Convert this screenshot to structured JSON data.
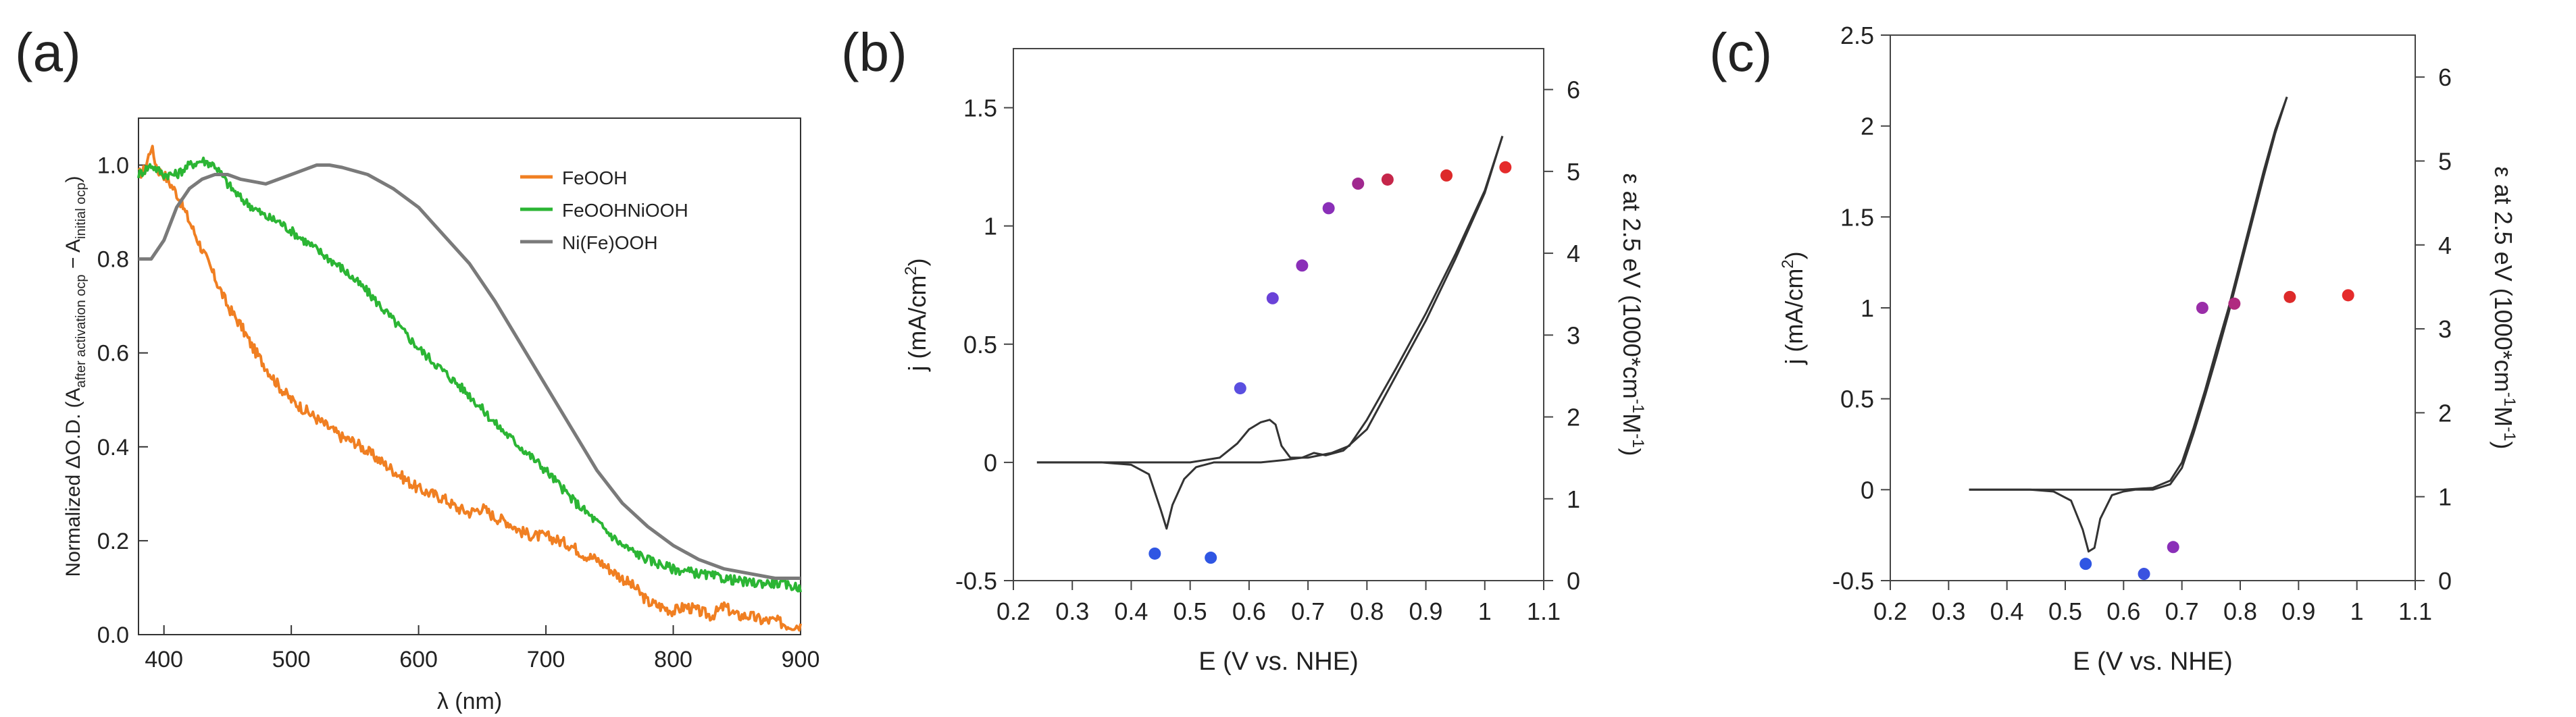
{
  "chart_data": [
    {
      "panel_label": "(a)",
      "type": "line",
      "xlabel": "λ (nm)",
      "ylabel": "Normalized ΔO.D. (A",
      "ylabel_sub1": "after activation ocp",
      "ylabel_mid": " − A",
      "ylabel_sub2": "initial ocp",
      "ylabel_end": ")",
      "xlim": [
        380,
        900
      ],
      "ylim": [
        0.0,
        1.1
      ],
      "xticks": [
        400,
        500,
        600,
        700,
        800,
        900
      ],
      "yticks": [
        0.0,
        0.2,
        0.4,
        0.6,
        0.8,
        1.0
      ],
      "legend_position": "top-right",
      "series": [
        {
          "name": "FeOOH",
          "color": "#f07f22",
          "noise": 0.012,
          "x": [
            380,
            385,
            390,
            395,
            400,
            410,
            420,
            430,
            440,
            450,
            460,
            470,
            480,
            490,
            500,
            510,
            520,
            530,
            540,
            550,
            560,
            570,
            580,
            590,
            600,
            610,
            620,
            630,
            640,
            650,
            660,
            670,
            680,
            690,
            700,
            710,
            720,
            730,
            740,
            750,
            760,
            770,
            780,
            790,
            800,
            810,
            820,
            830,
            840,
            850,
            860,
            870,
            880,
            890,
            900
          ],
          "y": [
            0.98,
            0.99,
            1.04,
            0.99,
            0.98,
            0.94,
            0.88,
            0.82,
            0.76,
            0.7,
            0.66,
            0.61,
            0.57,
            0.53,
            0.5,
            0.48,
            0.46,
            0.44,
            0.42,
            0.41,
            0.39,
            0.37,
            0.35,
            0.33,
            0.31,
            0.3,
            0.29,
            0.27,
            0.26,
            0.27,
            0.25,
            0.24,
            0.22,
            0.21,
            0.21,
            0.2,
            0.19,
            0.17,
            0.16,
            0.14,
            0.12,
            0.1,
            0.07,
            0.06,
            0.05,
            0.06,
            0.05,
            0.04,
            0.06,
            0.04,
            0.04,
            0.03,
            0.03,
            0.02,
            0.02
          ]
        },
        {
          "name": "FeOOHNiOOH",
          "color": "#2bb534",
          "noise": 0.01,
          "x": [
            380,
            390,
            400,
            410,
            420,
            430,
            440,
            450,
            460,
            470,
            480,
            490,
            500,
            520,
            540,
            560,
            580,
            600,
            620,
            640,
            660,
            680,
            700,
            720,
            740,
            760,
            780,
            800,
            820,
            840,
            860,
            880,
            900
          ],
          "y": [
            0.98,
            1.0,
            0.98,
            0.98,
            1.0,
            1.01,
            1.0,
            0.96,
            0.93,
            0.91,
            0.89,
            0.88,
            0.86,
            0.82,
            0.78,
            0.73,
            0.67,
            0.61,
            0.56,
            0.51,
            0.45,
            0.4,
            0.35,
            0.29,
            0.24,
            0.19,
            0.16,
            0.14,
            0.13,
            0.12,
            0.11,
            0.11,
            0.1
          ]
        },
        {
          "name": "Ni(Fe)OOH",
          "color": "#7a7a7a",
          "noise": 0,
          "x": [
            380,
            390,
            400,
            410,
            420,
            430,
            440,
            450,
            460,
            480,
            500,
            520,
            530,
            540,
            560,
            580,
            600,
            620,
            640,
            660,
            680,
            700,
            720,
            740,
            760,
            780,
            800,
            820,
            840,
            860,
            880,
            900
          ],
          "y": [
            0.8,
            0.8,
            0.84,
            0.91,
            0.95,
            0.97,
            0.98,
            0.98,
            0.97,
            0.96,
            0.98,
            1.0,
            1.0,
            0.995,
            0.98,
            0.95,
            0.91,
            0.85,
            0.79,
            0.71,
            0.62,
            0.53,
            0.44,
            0.35,
            0.28,
            0.23,
            0.19,
            0.16,
            0.14,
            0.13,
            0.12,
            0.12
          ]
        }
      ]
    },
    {
      "panel_label": "(b)",
      "type": "line",
      "xlabel": "E (V vs. NHE)",
      "ylabel": "j (mA/cm",
      "ylabel_sup": "2",
      "ylabel_end": ")",
      "y2label": "ε at 2.5 eV (1000*cm",
      "y2label_sup1": "-1",
      "y2label_mid": "M",
      "y2label_sup2": "-1",
      "y2label_end": ")",
      "xlim": [
        0.2,
        1.1
      ],
      "ylim": [
        -0.5,
        1.75
      ],
      "y2lim": [
        0,
        6.5
      ],
      "xticks": [
        0.2,
        0.3,
        0.4,
        0.5,
        0.6,
        0.7,
        0.8,
        0.9,
        1.0,
        1.1
      ],
      "xticklabels": [
        "0.2",
        "0.3",
        "0.4",
        "0.5",
        "0.6",
        "0.7",
        "0.8",
        "0.9",
        "1",
        "1.1"
      ],
      "yticks": [
        -0.5,
        0,
        0.5,
        1,
        1.5
      ],
      "yticklabels": [
        "-0.5",
        "0",
        "0.5",
        "1",
        "1.5"
      ],
      "y2ticks": [
        0,
        1,
        2,
        3,
        4,
        5,
        6
      ],
      "cv_forward": {
        "x": [
          0.24,
          0.3,
          0.4,
          0.5,
          0.55,
          0.58,
          0.6,
          0.62,
          0.635,
          0.645,
          0.655,
          0.67,
          0.7,
          0.74,
          0.77,
          0.8,
          0.85,
          0.9,
          0.95,
          1.0,
          1.03
        ],
        "y": [
          0.0,
          0.0,
          0.0,
          0.0,
          0.02,
          0.08,
          0.14,
          0.17,
          0.18,
          0.16,
          0.07,
          0.02,
          0.02,
          0.04,
          0.07,
          0.18,
          0.4,
          0.63,
          0.88,
          1.15,
          1.38
        ]
      },
      "cv_reverse": {
        "x": [
          1.03,
          1.0,
          0.95,
          0.9,
          0.85,
          0.8,
          0.76,
          0.73,
          0.71,
          0.69,
          0.66,
          0.62,
          0.58,
          0.54,
          0.51,
          0.49,
          0.47,
          0.46,
          0.45,
          0.43,
          0.4,
          0.35,
          0.3,
          0.24
        ],
        "y": [
          1.38,
          1.14,
          0.86,
          0.6,
          0.37,
          0.14,
          0.05,
          0.03,
          0.04,
          0.02,
          0.01,
          0.0,
          0.0,
          0.0,
          -0.02,
          -0.07,
          -0.18,
          -0.28,
          -0.2,
          -0.05,
          -0.01,
          0.0,
          0.0,
          0.0
        ]
      },
      "points": [
        {
          "x": 0.44,
          "y2": 0.33,
          "color": "#2f56e3"
        },
        {
          "x": 0.535,
          "y2": 0.28,
          "color": "#2f56e3"
        },
        {
          "x": 0.585,
          "y2": 2.35,
          "color": "#5a4fe0"
        },
        {
          "x": 0.64,
          "y2": 3.45,
          "color": "#6a42d8"
        },
        {
          "x": 0.69,
          "y2": 3.85,
          "color": "#8a2fb8"
        },
        {
          "x": 0.735,
          "y2": 4.55,
          "color": "#8a2fb8"
        },
        {
          "x": 0.785,
          "y2": 4.85,
          "color": "#a0288f"
        },
        {
          "x": 0.835,
          "y2": 4.9,
          "color": "#c5264a"
        },
        {
          "x": 0.935,
          "y2": 4.95,
          "color": "#dd2a2a"
        },
        {
          "x": 1.035,
          "y2": 5.05,
          "color": "#e52b2b"
        }
      ]
    },
    {
      "panel_label": "(c)",
      "type": "line",
      "xlabel": "E (V vs. NHE)",
      "ylabel": "j (mA/cm",
      "ylabel_sup": "2",
      "ylabel_end": ")",
      "y2label": "ε at 2.5 eV (1000*cm",
      "y2label_sup1": "-1",
      "y2label_mid": "M",
      "y2label_sup2": "-1",
      "y2label_end": ")",
      "xlim": [
        0.2,
        1.1
      ],
      "ylim": [
        -0.5,
        2.5
      ],
      "y2lim": [
        0,
        6.5
      ],
      "xticks": [
        0.2,
        0.3,
        0.4,
        0.5,
        0.6,
        0.7,
        0.8,
        0.9,
        1.0,
        1.1
      ],
      "xticklabels": [
        "0.2",
        "0.3",
        "0.4",
        "0.5",
        "0.6",
        "0.7",
        "0.8",
        "0.9",
        "1",
        "1.1"
      ],
      "yticks": [
        -0.5,
        0,
        0.5,
        1,
        1.5,
        2,
        2.5
      ],
      "yticklabels": [
        "-0.5",
        "0",
        "0.5",
        "1",
        "1.5",
        "2",
        "2.5"
      ],
      "y2ticks": [
        0,
        1,
        2,
        3,
        4,
        5,
        6
      ],
      "cv_forward": {
        "x": [
          0.335,
          0.4,
          0.5,
          0.6,
          0.65,
          0.68,
          0.7,
          0.72,
          0.74,
          0.76,
          0.78,
          0.8,
          0.82,
          0.84,
          0.86,
          0.88
        ],
        "y": [
          0.0,
          0.0,
          0.0,
          0.0,
          0.01,
          0.05,
          0.15,
          0.34,
          0.55,
          0.78,
          1.0,
          1.25,
          1.5,
          1.75,
          1.98,
          2.16
        ]
      },
      "cv_reverse": {
        "x": [
          0.88,
          0.86,
          0.84,
          0.82,
          0.8,
          0.78,
          0.76,
          0.74,
          0.72,
          0.7,
          0.68,
          0.65,
          0.62,
          0.6,
          0.58,
          0.56,
          0.55,
          0.54,
          0.53,
          0.51,
          0.48,
          0.44,
          0.4,
          0.335
        ],
        "y": [
          2.16,
          1.96,
          1.72,
          1.47,
          1.22,
          0.97,
          0.74,
          0.52,
          0.31,
          0.12,
          0.03,
          0.0,
          0.0,
          -0.01,
          -0.03,
          -0.16,
          -0.32,
          -0.34,
          -0.22,
          -0.06,
          -0.01,
          0.0,
          0.0,
          0.0
        ]
      },
      "points": [
        {
          "x": 0.535,
          "y2": 0.2,
          "color": "#2f56e3"
        },
        {
          "x": 0.635,
          "y2": 0.08,
          "color": "#3a52e0"
        },
        {
          "x": 0.685,
          "y2": 0.4,
          "color": "#8a2fb8"
        },
        {
          "x": 0.735,
          "y2": 3.25,
          "color": "#9a2ea8"
        },
        {
          "x": 0.79,
          "y2": 3.3,
          "color": "#b02a80"
        },
        {
          "x": 0.885,
          "y2": 3.38,
          "color": "#dd2a2a"
        },
        {
          "x": 0.985,
          "y2": 3.4,
          "color": "#e52b2b"
        }
      ]
    }
  ]
}
